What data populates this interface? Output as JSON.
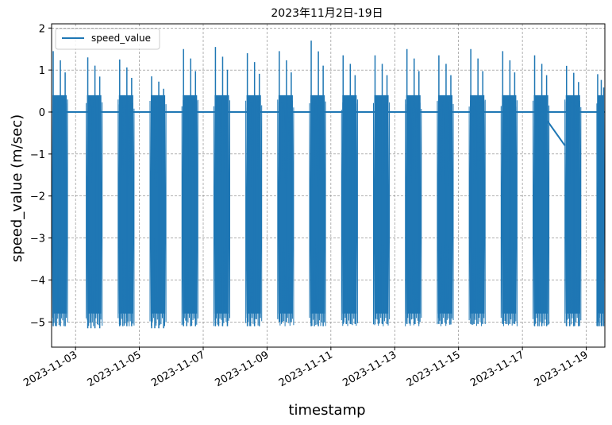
{
  "chart_data": {
    "type": "line",
    "title": "2023年11月2日-19日",
    "xlabel": "timestamp",
    "ylabel": "speed_value (m/sec)",
    "grid": true,
    "legend_position": "top-left",
    "x_range": [
      "2023-11-02 06:00",
      "2023-11-19 14:00"
    ],
    "ylim": [
      -5.6,
      2.1
    ],
    "x_ticks": [
      "2023-11-03",
      "2023-11-05",
      "2023-11-07",
      "2023-11-09",
      "2023-11-11",
      "2023-11-13",
      "2023-11-15",
      "2023-11-17",
      "2023-11-19"
    ],
    "y_ticks": [
      -5,
      -4,
      -3,
      -2,
      -1,
      0,
      1,
      2
    ],
    "y_tick_labels": [
      "−5",
      "−4",
      "−3",
      "−2",
      "−1",
      "0",
      "1",
      "2"
    ],
    "series": [
      {
        "name": "speed_value",
        "color": "#1f77b4",
        "baseline_value": 0,
        "bursts": [
          {
            "start": "2023-11-02 06:00",
            "end": "2023-11-02 18:00",
            "min": -5.1,
            "max": 1.45
          },
          {
            "start": "2023-11-03 08:00",
            "end": "2023-11-03 20:00",
            "min": -5.15,
            "max": 1.3
          },
          {
            "start": "2023-11-04 08:00",
            "end": "2023-11-04 20:00",
            "min": -5.1,
            "max": 1.25
          },
          {
            "start": "2023-11-05 08:00",
            "end": "2023-11-05 20:00",
            "min": -5.15,
            "max": 0.85
          },
          {
            "start": "2023-11-06 08:00",
            "end": "2023-11-06 20:00",
            "min": -5.1,
            "max": 1.5
          },
          {
            "start": "2023-11-07 08:00",
            "end": "2023-11-07 20:00",
            "min": -5.1,
            "max": 1.55
          },
          {
            "start": "2023-11-08 08:00",
            "end": "2023-11-08 20:00",
            "min": -5.1,
            "max": 1.4
          },
          {
            "start": "2023-11-09 08:00",
            "end": "2023-11-09 20:00",
            "min": -5.0,
            "max": 1.45
          },
          {
            "start": "2023-11-10 08:00",
            "end": "2023-11-10 20:00",
            "min": -5.1,
            "max": 1.7
          },
          {
            "start": "2023-11-11 08:00",
            "end": "2023-11-11 20:00",
            "min": -5.05,
            "max": 1.35
          },
          {
            "start": "2023-11-12 08:00",
            "end": "2023-11-12 20:00",
            "min": -5.05,
            "max": 1.35
          },
          {
            "start": "2023-11-13 08:00",
            "end": "2023-11-13 20:00",
            "min": -5.05,
            "max": 1.5
          },
          {
            "start": "2023-11-14 08:00",
            "end": "2023-11-14 20:00",
            "min": -5.05,
            "max": 1.35
          },
          {
            "start": "2023-11-15 08:00",
            "end": "2023-11-15 20:00",
            "min": -5.05,
            "max": 1.5
          },
          {
            "start": "2023-11-16 08:00",
            "end": "2023-11-16 20:00",
            "min": -5.05,
            "max": 1.45
          },
          {
            "start": "2023-11-17 08:00",
            "end": "2023-11-17 20:00",
            "min": -5.1,
            "max": 1.35
          },
          {
            "start": "2023-11-18 08:00",
            "end": "2023-11-18 20:00",
            "min": -5.1,
            "max": 1.1
          },
          {
            "start": "2023-11-19 08:00",
            "end": "2023-11-19 14:00",
            "min": -5.1,
            "max": 0.9
          }
        ],
        "gap_segment": {
          "from": {
            "x": "2023-11-17 14:00",
            "y": 0
          },
          "to": {
            "x": "2023-11-18 08:00",
            "y": -0.8
          }
        }
      }
    ]
  }
}
